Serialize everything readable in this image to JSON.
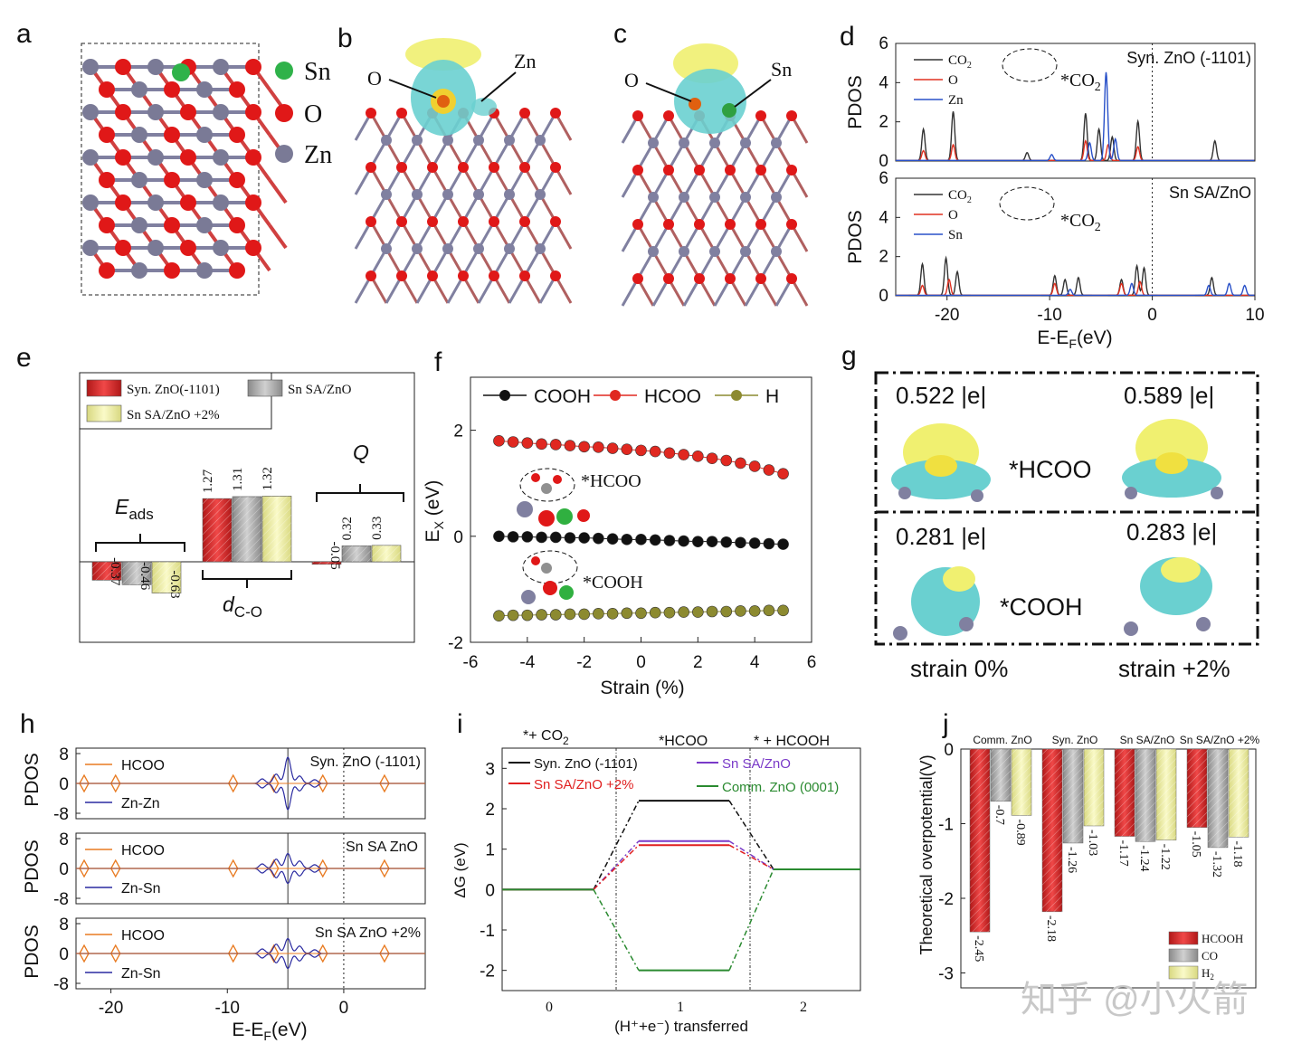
{
  "panels": {
    "a": {
      "label": "a",
      "legend": [
        "Sn",
        "O",
        "Zn"
      ],
      "colors": [
        "#2fb24a",
        "#e01818",
        "#7a7a96"
      ]
    },
    "b": {
      "label": "b",
      "atoms": [
        "O",
        "Zn"
      ]
    },
    "c": {
      "label": "c",
      "atoms": [
        "O",
        "Sn"
      ]
    },
    "d": {
      "label": "d",
      "ylabel": "PDOS",
      "xlabel": "E-E",
      "xlabel_sub": "F",
      "xlabel_unit": "(eV)",
      "top_title": "Syn. ZnO (-1101)",
      "bottom_title": "Sn SA/ZnO",
      "top_legend": [
        "CO",
        "O",
        "Zn"
      ],
      "bottom_legend": [
        "CO",
        "O",
        "Sn"
      ],
      "co2_sub": "2",
      "inset": "*CO",
      "inset_sub": "2",
      "yticks": [
        "0",
        "2",
        "4",
        "6"
      ],
      "xticks": [
        "-20",
        "-10",
        "0",
        "10"
      ]
    },
    "e": {
      "label": "e",
      "legend": [
        "Syn. ZnO(-1101)",
        "Sn SA/ZnO",
        "Sn SA/ZnO +2%"
      ],
      "group_labels": [
        "E",
        "d",
        "Q"
      ],
      "group_subs": [
        "ads",
        "C-O",
        ""
      ]
    },
    "f": {
      "label": "f",
      "ylabel": "E",
      "ylabel_sub": "X",
      "ylabel_unit": " (eV)",
      "xlabel": "Strain (%)",
      "legend": [
        "COOH",
        "HCOO",
        "H"
      ],
      "inset_labels": [
        "*HCOO",
        "*COOH"
      ],
      "yticks": [
        "-2",
        "0",
        "2"
      ],
      "xticks": [
        "-6",
        "-4",
        "-2",
        "0",
        "2",
        "4",
        "6"
      ]
    },
    "g": {
      "label": "g",
      "charges": [
        "0.522 |e|",
        "0.589 |e|",
        "0.281 |e|",
        "0.283 |e|"
      ],
      "species": [
        "*HCOO",
        "*COOH"
      ],
      "strains": [
        "strain 0%",
        "strain +2%"
      ]
    },
    "h": {
      "label": "h",
      "ylabel": "PDOS",
      "xlabel": "E-E",
      "xlabel_sub": "F",
      "xlabel_unit": "(eV)",
      "titles": [
        "Syn. ZnO (-1101)",
        "Sn SA ZnO",
        "Sn SA ZnO +2%"
      ],
      "legend_top": "HCOO",
      "legend_bottom": [
        "Zn-Zn",
        "Zn-Sn",
        "Zn-Sn"
      ],
      "yticks": [
        "8",
        "0",
        "-8"
      ],
      "xticks": [
        "-20",
        "-10",
        "0"
      ]
    },
    "i": {
      "label": "i",
      "ylabel": "ΔG (eV)",
      "xlabel": "(H⁺+e⁻) transferred",
      "stages": [
        "*+ CO",
        "*HCOO",
        "* +  HCOOH"
      ],
      "stage_sub": "2",
      "yticks": [
        "3",
        "2",
        "1",
        "0",
        "-1",
        "-2"
      ],
      "xticks": [
        "0",
        "1",
        "2"
      ]
    },
    "j": {
      "label": "j",
      "ylabel": "Theoretical overpotential(V)",
      "yticks": [
        "0",
        "-1",
        "-2",
        "-3"
      ],
      "legend": [
        "HCOOH",
        "CO",
        "H"
      ],
      "h2_sub": "2"
    }
  },
  "watermark": "知乎 @小火箭",
  "chart_data": [
    {
      "panel": "d-top",
      "type": "line",
      "title": "Syn. ZnO (-1101)",
      "xlim": [
        -25,
        10
      ],
      "ylim": [
        0,
        6
      ],
      "series": [
        {
          "name": "CO2",
          "color": "#333333",
          "peaks": [
            [
              -22.3,
              1.6
            ],
            [
              -19.4,
              2.5
            ],
            [
              -12.2,
              0.4
            ],
            [
              -6.5,
              2.4
            ],
            [
              -5.2,
              1.6
            ],
            [
              -3.9,
              1.2
            ],
            [
              -1.4,
              2.0
            ],
            [
              6.1,
              1.0
            ]
          ]
        },
        {
          "name": "O",
          "color": "#e03020",
          "peaks": [
            [
              -22.3,
              0.5
            ],
            [
              -19.4,
              0.8
            ],
            [
              -6.5,
              1.0
            ],
            [
              -4.3,
              0.8
            ],
            [
              -1.4,
              0.7
            ]
          ]
        },
        {
          "name": "Zn",
          "color": "#2850c8",
          "peaks": [
            [
              -9.8,
              0.3
            ],
            [
              -6.1,
              0.9
            ],
            [
              -4.5,
              4.5
            ],
            [
              -3.6,
              1.1
            ]
          ]
        }
      ]
    },
    {
      "panel": "d-bottom",
      "type": "line",
      "title": "Sn SA/ZnO",
      "xlim": [
        -25,
        10
      ],
      "ylim": [
        0,
        6
      ],
      "series": [
        {
          "name": "CO2",
          "color": "#333333",
          "peaks": [
            [
              -22.4,
              1.6
            ],
            [
              -20.1,
              1.9
            ],
            [
              -19.0,
              1.2
            ],
            [
              -9.5,
              1.0
            ],
            [
              -8.5,
              0.8
            ],
            [
              -7.2,
              0.9
            ],
            [
              -3.0,
              0.8
            ],
            [
              -1.5,
              1.5
            ],
            [
              -0.8,
              1.4
            ],
            [
              5.8,
              0.9
            ]
          ]
        },
        {
          "name": "O",
          "color": "#e03020",
          "peaks": [
            [
              -22.4,
              0.5
            ],
            [
              -19.8,
              0.8
            ],
            [
              -9.5,
              0.6
            ],
            [
              -3.0,
              0.6
            ],
            [
              -1.2,
              0.7
            ]
          ]
        },
        {
          "name": "Sn",
          "color": "#2850c8",
          "peaks": [
            [
              -8.0,
              0.3
            ],
            [
              -2.0,
              0.6
            ],
            [
              5.5,
              0.5
            ],
            [
              7.5,
              0.6
            ],
            [
              9.0,
              0.5
            ]
          ]
        }
      ]
    },
    {
      "panel": "e",
      "type": "bar",
      "categories": [
        "Eads",
        "dC-O",
        "Q"
      ],
      "series": [
        {
          "name": "Syn. ZnO(-1101)",
          "values": [
            -0.37,
            1.27,
            -0.05
          ],
          "color": "#d42a2a"
        },
        {
          "name": "Sn SA/ZnO",
          "values": [
            -0.46,
            1.31,
            0.32
          ],
          "color": "#a8a8a8"
        },
        {
          "name": "Sn SA/ZnO +2%",
          "values": [
            -0.63,
            1.32,
            0.33
          ],
          "color": "#ecec9c"
        }
      ]
    },
    {
      "panel": "f",
      "type": "line",
      "xlabel": "Strain (%)",
      "xlim": [
        -6,
        6
      ],
      "ylim": [
        -2,
        3
      ],
      "x": [
        -5,
        -4.5,
        -4,
        -3.5,
        -3,
        -2.5,
        -2,
        -1.5,
        -1,
        -0.5,
        0,
        0.5,
        1,
        1.5,
        2,
        2.5,
        3,
        3.5,
        4,
        4.5,
        5
      ],
      "series": [
        {
          "name": "COOH",
          "color": "#111111",
          "values": [
            0.0,
            -0.01,
            -0.01,
            -0.02,
            -0.02,
            -0.03,
            -0.03,
            -0.04,
            -0.05,
            -0.06,
            -0.06,
            -0.07,
            -0.08,
            -0.09,
            -0.1,
            -0.1,
            -0.11,
            -0.12,
            -0.13,
            -0.14,
            -0.15
          ]
        },
        {
          "name": "HCOO",
          "color": "#e02820",
          "values": [
            1.8,
            1.78,
            1.76,
            1.74,
            1.73,
            1.71,
            1.69,
            1.68,
            1.66,
            1.64,
            1.62,
            1.6,
            1.57,
            1.54,
            1.51,
            1.47,
            1.43,
            1.38,
            1.32,
            1.25,
            1.18
          ]
        },
        {
          "name": "H",
          "color": "#8c8a30",
          "values": [
            -1.5,
            -1.49,
            -1.49,
            -1.48,
            -1.48,
            -1.47,
            -1.47,
            -1.46,
            -1.46,
            -1.45,
            -1.45,
            -1.44,
            -1.44,
            -1.43,
            -1.43,
            -1.42,
            -1.42,
            -1.41,
            -1.41,
            -1.4,
            -1.4
          ]
        }
      ]
    },
    {
      "panel": "h",
      "type": "line",
      "xlim": [
        -23,
        7
      ],
      "ylim": [
        -8,
        8
      ],
      "series": [
        {
          "name": "HCOO"
        },
        {
          "name": "Zn-Zn"
        },
        {
          "name": "Zn-Sn"
        }
      ]
    },
    {
      "panel": "i",
      "type": "line",
      "xlabel": "(H⁺+e⁻) transferred",
      "ylabel": "ΔG (eV)",
      "ylim": [
        -2.5,
        3.5
      ],
      "series": [
        {
          "name": "Syn. ZnO (-1101)",
          "color": "#111111",
          "values": [
            0,
            2.2,
            0.5
          ]
        },
        {
          "name": "Sn SA/ZnO",
          "color": "#7a3ac8",
          "values": [
            0,
            1.2,
            0.5
          ]
        },
        {
          "name": "Sn SA/ZnO +2%",
          "color": "#e02020",
          "values": [
            0,
            1.1,
            0.5
          ]
        },
        {
          "name": "Comm. ZnO (0001)",
          "color": "#2a8a30",
          "values": [
            0,
            -2.0,
            0.5
          ]
        }
      ]
    },
    {
      "panel": "j",
      "type": "bar",
      "categories": [
        "Comm. ZnO",
        "Syn. ZnO",
        "Sn SA/ZnO",
        "Sn SA/ZnO +2%"
      ],
      "ylim": [
        -3.2,
        0
      ],
      "series": [
        {
          "name": "HCOOH",
          "values": [
            -2.45,
            -2.18,
            -1.17,
            -1.05
          ],
          "color": "#d42a2a"
        },
        {
          "name": "CO",
          "values": [
            -0.7,
            -1.26,
            -1.24,
            -1.32
          ],
          "color": "#a8a8a8"
        },
        {
          "name": "H2",
          "values": [
            -0.89,
            -1.03,
            -1.22,
            -1.18
          ],
          "color": "#ecec9c"
        }
      ]
    }
  ]
}
